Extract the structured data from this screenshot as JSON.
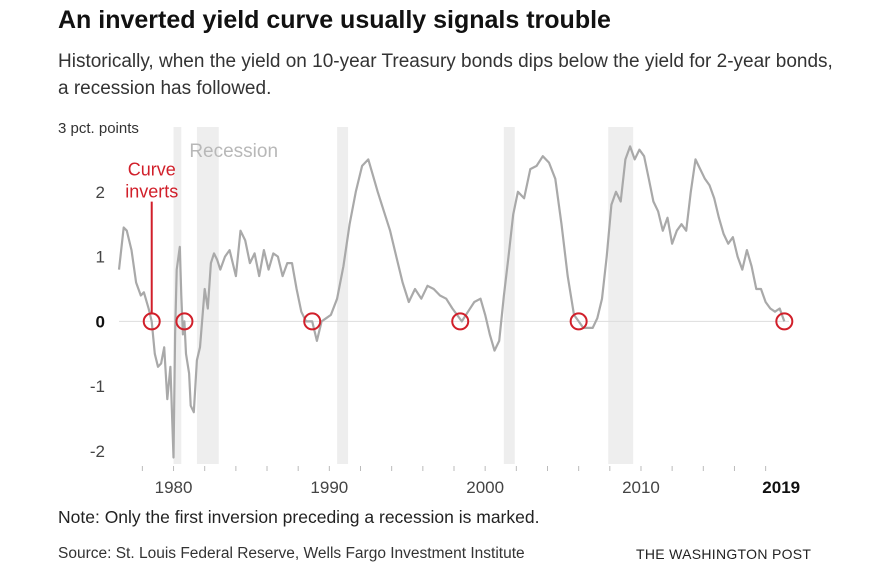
{
  "header": {
    "title": "An inverted yield curve usually signals trouble",
    "subtitle": "Historically, when the yield on 10-year Treasury bonds dips below the yield for 2-year bonds, a recession has followed."
  },
  "footer": {
    "note": "Note: Only the first inversion preceding a recession is marked.",
    "source": "Source: St. Louis Federal Reserve, Wells Fargo Investment Institute",
    "brand": "THE WASHINGTON POST"
  },
  "colors": {
    "line": "#a9a9a9",
    "recession": "#eeeeee",
    "annotation": "#d11f2a",
    "zero_line": "#dddddd"
  },
  "chart_data": {
    "type": "line",
    "title": "An inverted yield curve usually signals trouble",
    "ylabel": "3 pct. points",
    "xlim": [
      1976.5,
      2019.5
    ],
    "ylim": [
      -2.2,
      3.0
    ],
    "y_ticks": [
      {
        "value": 3,
        "label": "3 pct. points"
      },
      {
        "value": 2,
        "label": "2"
      },
      {
        "value": 1,
        "label": "1"
      },
      {
        "value": 0,
        "label": "0"
      },
      {
        "value": -1,
        "label": "-1"
      },
      {
        "value": -2,
        "label": "-2"
      }
    ],
    "x_ticks": [
      {
        "value": 1980,
        "label": "1980",
        "bold": false
      },
      {
        "value": 1990,
        "label": "1990",
        "bold": false
      },
      {
        "value": 2000,
        "label": "2000",
        "bold": false
      },
      {
        "value": 2010,
        "label": "2010",
        "bold": false
      },
      {
        "value": 2019,
        "label": "2019",
        "bold": true
      }
    ],
    "recession_label": "Recession",
    "recessions": [
      [
        1980.0,
        1980.5
      ],
      [
        1981.5,
        1982.9
      ],
      [
        1990.5,
        1991.2
      ],
      [
        2001.2,
        2001.9
      ],
      [
        2007.9,
        2009.5
      ]
    ],
    "annotation": {
      "lines": [
        "Curve",
        "inverts"
      ],
      "x": 1978.6
    },
    "inversions": [
      {
        "x": 1978.6,
        "y": 0
      },
      {
        "x": 1980.7,
        "y": 0
      },
      {
        "x": 1988.9,
        "y": 0
      },
      {
        "x": 1998.4,
        "y": 0
      },
      {
        "x": 2006.0,
        "y": 0
      },
      {
        "x": 2019.2,
        "y": 0
      }
    ],
    "series": [
      {
        "name": "",
        "x": [
          1976.5,
          1976.8,
          1977.0,
          1977.3,
          1977.6,
          1977.9,
          1978.1,
          1978.4,
          1978.6,
          1978.8,
          1979.0,
          1979.2,
          1979.4,
          1979.6,
          1979.8,
          1980.0,
          1980.1,
          1980.2,
          1980.4,
          1980.5,
          1980.6,
          1980.7,
          1980.8,
          1981.0,
          1981.1,
          1981.3,
          1981.5,
          1981.7,
          1982.0,
          1982.2,
          1982.4,
          1982.6,
          1982.8,
          1983.0,
          1983.3,
          1983.6,
          1984.0,
          1984.3,
          1984.6,
          1984.9,
          1985.2,
          1985.5,
          1985.8,
          1986.1,
          1986.4,
          1986.7,
          1987.0,
          1987.3,
          1987.6,
          1987.9,
          1988.2,
          1988.5,
          1988.9,
          1989.2,
          1989.5,
          1989.8,
          1990.1,
          1990.5,
          1990.9,
          1991.3,
          1991.7,
          1992.1,
          1992.5,
          1992.8,
          1993.1,
          1993.5,
          1993.9,
          1994.3,
          1994.7,
          1995.1,
          1995.5,
          1995.9,
          1996.3,
          1996.7,
          1997.1,
          1997.5,
          1997.9,
          1998.2,
          1998.5,
          1998.9,
          1999.3,
          1999.7,
          2000.0,
          2000.3,
          2000.6,
          2000.9,
          2001.2,
          2001.5,
          2001.8,
          2002.1,
          2002.5,
          2002.9,
          2003.3,
          2003.7,
          2004.1,
          2004.5,
          2004.9,
          2005.3,
          2005.7,
          2006.0,
          2006.3,
          2006.6,
          2006.9,
          2007.2,
          2007.5,
          2007.8,
          2008.1,
          2008.4,
          2008.7,
          2009.0,
          2009.3,
          2009.6,
          2009.9,
          2010.2,
          2010.5,
          2010.8,
          2011.1,
          2011.4,
          2011.7,
          2012.0,
          2012.3,
          2012.6,
          2012.9,
          2013.2,
          2013.5,
          2013.8,
          2014.1,
          2014.4,
          2014.7,
          2015.0,
          2015.3,
          2015.6,
          2015.9,
          2016.2,
          2016.5,
          2016.8,
          2017.1,
          2017.4,
          2017.7,
          2018.0,
          2018.3,
          2018.6,
          2018.9,
          2019.2
        ],
        "values": [
          0.8,
          1.45,
          1.4,
          1.1,
          0.6,
          0.4,
          0.45,
          0.2,
          0.0,
          -0.5,
          -0.7,
          -0.65,
          -0.4,
          -1.2,
          -0.7,
          -2.1,
          -0.2,
          0.8,
          1.15,
          0.4,
          -0.2,
          0.0,
          -0.5,
          -0.8,
          -1.3,
          -1.4,
          -0.6,
          -0.4,
          0.5,
          0.2,
          0.9,
          1.05,
          0.95,
          0.8,
          1.0,
          1.1,
          0.7,
          1.4,
          1.25,
          0.9,
          1.05,
          0.7,
          1.1,
          0.8,
          1.05,
          1.0,
          0.7,
          0.9,
          0.9,
          0.5,
          0.15,
          0.0,
          0.0,
          -0.3,
          0.0,
          0.05,
          0.1,
          0.35,
          0.85,
          1.5,
          2.0,
          2.4,
          2.5,
          2.25,
          2.0,
          1.7,
          1.4,
          1.0,
          0.6,
          0.3,
          0.5,
          0.35,
          0.55,
          0.5,
          0.4,
          0.35,
          0.2,
          0.1,
          0.0,
          0.15,
          0.3,
          0.35,
          0.1,
          -0.2,
          -0.45,
          -0.3,
          0.4,
          1.0,
          1.65,
          2.0,
          1.9,
          2.35,
          2.4,
          2.55,
          2.45,
          2.2,
          1.5,
          0.7,
          0.1,
          0.0,
          -0.1,
          -0.1,
          -0.1,
          0.05,
          0.35,
          1.0,
          1.8,
          2.0,
          1.85,
          2.5,
          2.7,
          2.5,
          2.65,
          2.55,
          2.2,
          1.85,
          1.7,
          1.4,
          1.6,
          1.2,
          1.4,
          1.5,
          1.4,
          2.0,
          2.5,
          2.35,
          2.2,
          2.1,
          1.9,
          1.6,
          1.35,
          1.2,
          1.3,
          1.0,
          0.8,
          1.1,
          0.85,
          0.5,
          0.5,
          0.3,
          0.2,
          0.15,
          0.2,
          0.0
        ]
      }
    ]
  }
}
